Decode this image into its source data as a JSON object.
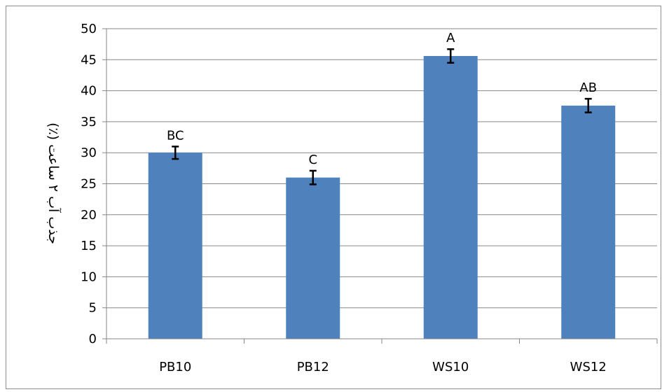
{
  "chart_data": {
    "type": "bar",
    "categories": [
      "PB10",
      "PB12",
      "WS10",
      "WS12"
    ],
    "values": [
      30,
      26,
      45.6,
      37.6
    ],
    "error": [
      1.0,
      1.1,
      1.1,
      1.1
    ],
    "group_letters": [
      "BC",
      "C",
      "A",
      "AB"
    ],
    "title": "",
    "xlabel": "",
    "ylabel": "جذب آب ۲ ساعت (٪)",
    "ylim": [
      0,
      50
    ],
    "yticks": [
      0,
      5,
      10,
      15,
      20,
      25,
      30,
      35,
      40,
      45,
      50
    ],
    "grid": "horizontal",
    "legend": "none",
    "colors": {
      "bar": "#4f81bd",
      "grid": "#878787",
      "axis": "#878787",
      "error_bar": "#000000"
    }
  }
}
